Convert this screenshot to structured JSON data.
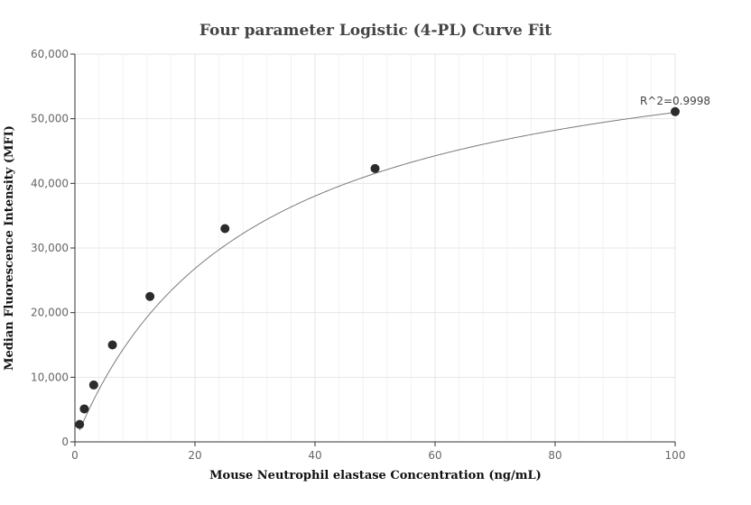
{
  "chart_data": {
    "type": "scatter",
    "title": "Four parameter Logistic (4-PL) Curve Fit",
    "xlabel": "Mouse Neutrophil elastase Concentration (ng/mL)",
    "ylabel": "Median Fluorescence Intensity (MFI)",
    "xlim": [
      0,
      100
    ],
    "ylim": [
      0,
      60000
    ],
    "x_ticks": [
      0,
      20,
      40,
      60,
      80,
      100
    ],
    "y_ticks": [
      0,
      10000,
      20000,
      30000,
      40000,
      50000,
      60000
    ],
    "x_tick_labels": [
      "0",
      "20",
      "40",
      "60",
      "80",
      "100"
    ],
    "y_tick_labels": [
      "0",
      "10,000",
      "20,000",
      "30,000",
      "40,000",
      "50,000",
      "60,000"
    ],
    "grid": true,
    "series": [
      {
        "points": [
          {
            "x": 0.78,
            "y": 2700
          },
          {
            "x": 1.56,
            "y": 5100
          },
          {
            "x": 3.13,
            "y": 8800
          },
          {
            "x": 6.25,
            "y": 15000
          },
          {
            "x": 12.5,
            "y": 22500
          },
          {
            "x": 25,
            "y": 33000
          },
          {
            "x": 50,
            "y": 42300
          },
          {
            "x": 100,
            "y": 51100
          }
        ]
      }
    ],
    "fit_curve": {
      "model": "4PL",
      "a": 0,
      "b": 0.987,
      "c": 29.6,
      "d": 66300
    },
    "annotation": "R^2=0.9998",
    "colors": {
      "points": "#2b2b2b",
      "curve": "#7a7a7a",
      "grid": "#e6e6e6",
      "axis": "#333333"
    }
  }
}
